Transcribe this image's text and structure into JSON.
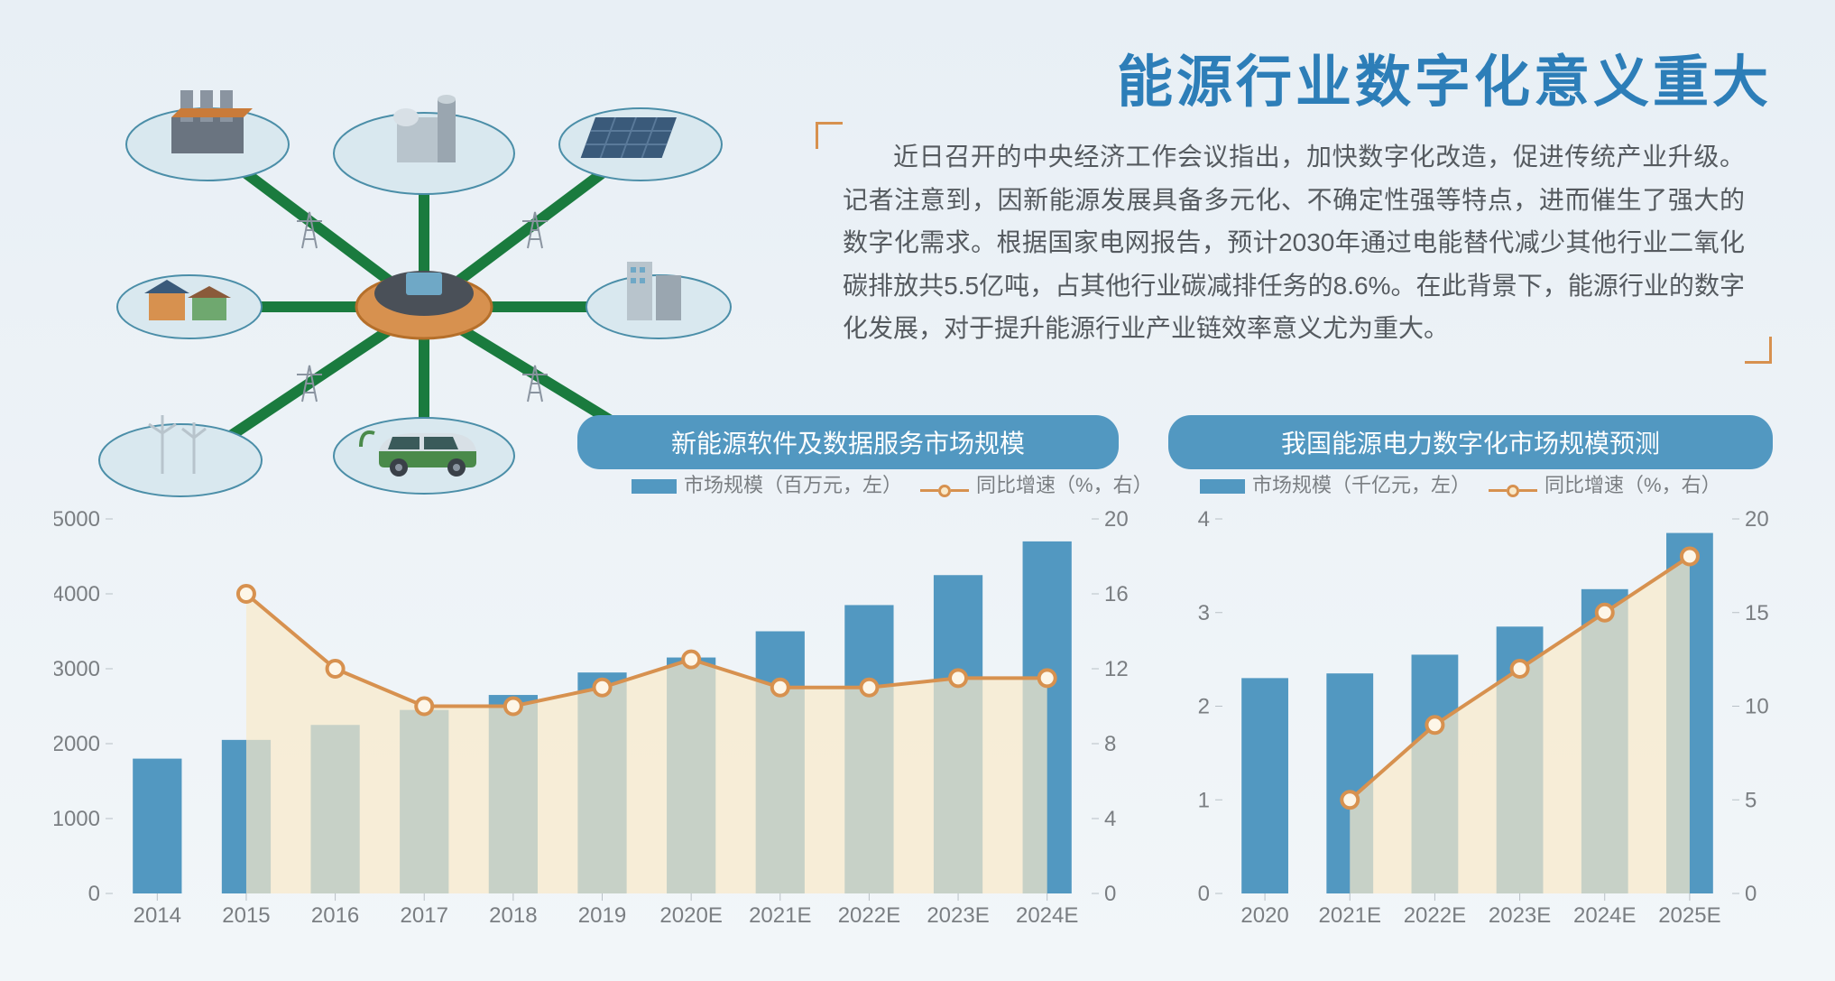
{
  "headline": "能源行业数字化意义重大",
  "body_text": "近日召开的中央经济工作会议指出，加快数字化改造，促进传统产业升级。记者注意到，因新能源发展具备多元化、不确定性强等特点，进而催生了强大的数字化需求。根据国家电网报告，预计2030年通过电能替代减少其他行业二氧化碳排放共5.5亿吨，占其他行业碳减排任务的8.6%。在此背景下，能源行业的数字化发展，对于提升能源行业产业链效率意义尤为重大。",
  "colors": {
    "bar": "#5298c1",
    "line": "#d7914f",
    "area": "#f9e9c9",
    "text": "#7a7e82",
    "headline": "#2d7eb8",
    "bracket": "#d7914f",
    "network": "#1a7b3e",
    "background_top": "#e8eff5",
    "background_bottom": "#f2f6f9"
  },
  "chart1": {
    "title": "新能源软件及数据服务市场规模",
    "legend_bar": "市场规模（百万元，左）",
    "legend_line": "同比增速（%，右）",
    "type": "bar+line",
    "categories": [
      "2014",
      "2015",
      "2016",
      "2017",
      "2018",
      "2019",
      "2020E",
      "2021E",
      "2022E",
      "2023E",
      "2024E"
    ],
    "bar_values": [
      1800,
      2050,
      2250,
      2450,
      2650,
      2950,
      3150,
      3500,
      3850,
      4250,
      4700
    ],
    "line_values": [
      null,
      16,
      12,
      10,
      10,
      11,
      12.5,
      11,
      11,
      11.5,
      11.5
    ],
    "y_left": {
      "min": 0,
      "max": 5000,
      "step": 1000
    },
    "y_right": {
      "min": 0,
      "max": 20,
      "step": 4
    },
    "bar_width_ratio": 0.55,
    "point_radius": 9,
    "line_width": 4
  },
  "chart2": {
    "title": "我国能源电力数字化市场规模预测",
    "legend_bar": "市场规模（千亿元，左）",
    "legend_line": "同比增速（%，右）",
    "type": "bar+line",
    "categories": [
      "2020",
      "2021E",
      "2022E",
      "2023E",
      "2024E",
      "2025E"
    ],
    "bar_values": [
      2.3,
      2.35,
      2.55,
      2.85,
      3.25,
      3.85
    ],
    "line_values": [
      null,
      5,
      9,
      12,
      15,
      18
    ],
    "y_left": {
      "min": 0,
      "max": 4,
      "step": 1
    },
    "y_right": {
      "min": 0,
      "max": 20,
      "step": 5
    },
    "bar_width_ratio": 0.55,
    "point_radius": 9,
    "line_width": 4
  }
}
